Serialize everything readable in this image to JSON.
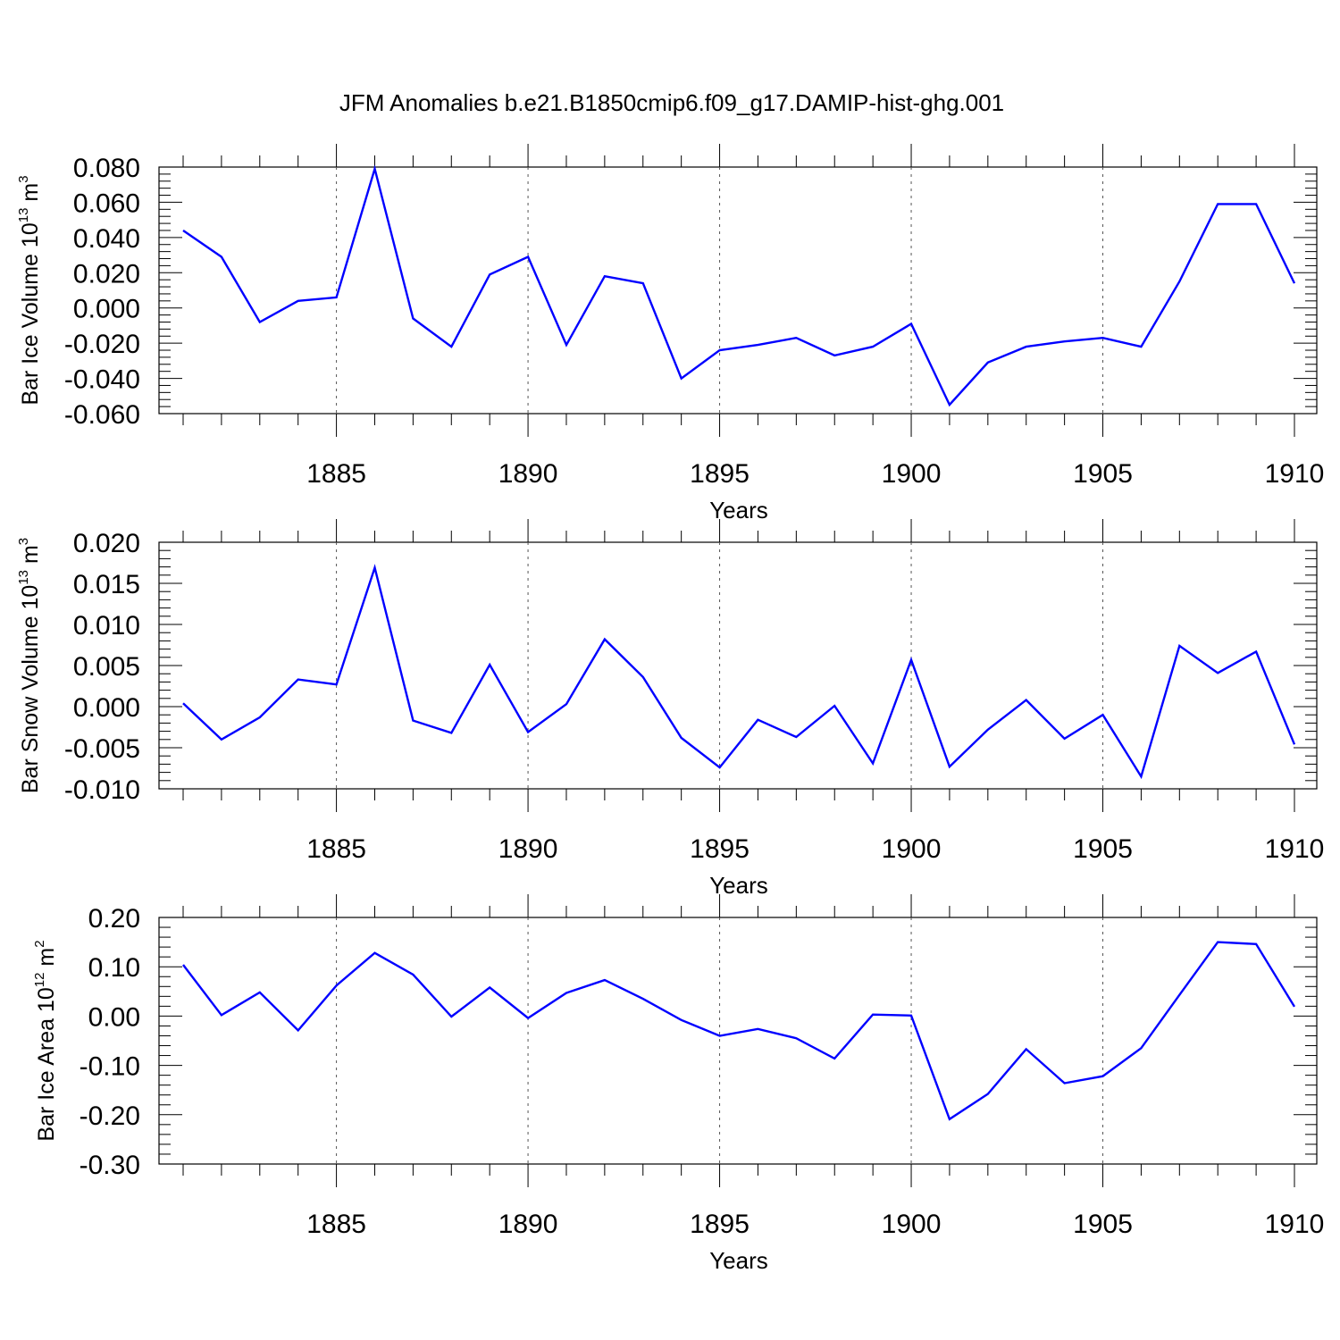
{
  "title": "JFM Anomalies b.e21.B1850cmip6.f09_g17.DAMIP-hist-ghg.001",
  "colors": {
    "line": "#0000ff",
    "axis": "#000000",
    "grid": "#000000",
    "background": "#ffffff"
  },
  "chart_data": [
    {
      "type": "line",
      "xlabel": "Years",
      "ylabel": {
        "base": "Bar Ice Volume 10",
        "sup1": "13",
        "unit": " m",
        "sup2": "3"
      },
      "xlim": [
        1881,
        1910
      ],
      "ylim": [
        -0.06,
        0.08
      ],
      "ytick_values": [
        -0.06,
        -0.04,
        -0.02,
        0.0,
        0.02,
        0.04,
        0.06,
        0.08
      ],
      "ytick_labels": [
        "-0.060",
        "-0.040",
        "-0.020",
        "0.000",
        "0.020",
        "0.040",
        "0.060",
        "0.080"
      ],
      "xtick_values": [
        1885,
        1890,
        1895,
        1900,
        1905,
        1910
      ],
      "xtick_labels": [
        "1885",
        "1890",
        "1895",
        "1900",
        "1905",
        "1910"
      ],
      "x": [
        1881,
        1882,
        1883,
        1884,
        1885,
        1886,
        1887,
        1888,
        1889,
        1890,
        1891,
        1892,
        1893,
        1894,
        1895,
        1896,
        1897,
        1898,
        1899,
        1900,
        1901,
        1902,
        1903,
        1904,
        1905,
        1906,
        1907,
        1908,
        1909,
        1910
      ],
      "series": [
        {
          "values": [
            0.044,
            0.029,
            -0.008,
            0.004,
            0.006,
            0.079,
            -0.006,
            -0.022,
            0.019,
            0.029,
            -0.021,
            0.018,
            0.014,
            -0.04,
            -0.024,
            -0.021,
            -0.017,
            -0.027,
            -0.022,
            -0.009,
            -0.055,
            -0.031,
            -0.022,
            -0.019,
            -0.017,
            -0.022,
            0.015,
            0.059,
            0.059,
            0.014
          ]
        }
      ]
    },
    {
      "type": "line",
      "xlabel": "Years",
      "ylabel": {
        "base": "Bar Snow Volume 10",
        "sup1": "13",
        "unit": " m",
        "sup2": "3"
      },
      "xlim": [
        1881,
        1910
      ],
      "ylim": [
        -0.01,
        0.02
      ],
      "ytick_values": [
        -0.01,
        -0.005,
        0.0,
        0.005,
        0.01,
        0.015,
        0.02
      ],
      "ytick_labels": [
        "-0.010",
        "-0.005",
        "0.000",
        "0.005",
        "0.010",
        "0.015",
        "0.020"
      ],
      "xtick_values": [
        1885,
        1890,
        1895,
        1900,
        1905,
        1910
      ],
      "xtick_labels": [
        "1885",
        "1890",
        "1895",
        "1900",
        "1905",
        "1910"
      ],
      "x": [
        1881,
        1882,
        1883,
        1884,
        1885,
        1886,
        1887,
        1888,
        1889,
        1890,
        1891,
        1892,
        1893,
        1894,
        1895,
        1896,
        1897,
        1898,
        1899,
        1900,
        1901,
        1902,
        1903,
        1904,
        1905,
        1906,
        1907,
        1908,
        1909,
        1910
      ],
      "series": [
        {
          "values": [
            0.0004,
            -0.004,
            -0.0013,
            0.0033,
            0.0027,
            0.0169,
            -0.0017,
            -0.0032,
            0.0051,
            -0.0031,
            0.0003,
            0.0082,
            0.0036,
            -0.0038,
            -0.0074,
            -0.0016,
            -0.0037,
            0.0001,
            -0.0069,
            0.0057,
            -0.0073,
            -0.0028,
            0.0008,
            -0.0039,
            -0.001,
            -0.0085,
            0.0074,
            0.0041,
            0.0067,
            -0.0046
          ]
        }
      ]
    },
    {
      "type": "line",
      "xlabel": "Years",
      "ylabel": {
        "base": "Bar Ice Area 10",
        "sup1": "12",
        "unit": " m",
        "sup2": "2"
      },
      "xlim": [
        1881,
        1910
      ],
      "ylim": [
        -0.3,
        0.2
      ],
      "ytick_values": [
        -0.3,
        -0.2,
        -0.1,
        0.0,
        0.1,
        0.2
      ],
      "ytick_labels": [
        "-0.30",
        "-0.20",
        "-0.10",
        "0.00",
        "0.10",
        "0.20"
      ],
      "xtick_values": [
        1885,
        1890,
        1895,
        1900,
        1905,
        1910
      ],
      "xtick_labels": [
        "1885",
        "1890",
        "1895",
        "1900",
        "1905",
        "1910"
      ],
      "x": [
        1881,
        1882,
        1883,
        1884,
        1885,
        1886,
        1887,
        1888,
        1889,
        1890,
        1891,
        1892,
        1893,
        1894,
        1895,
        1896,
        1897,
        1898,
        1899,
        1900,
        1901,
        1902,
        1903,
        1904,
        1905,
        1906,
        1907,
        1908,
        1909,
        1910
      ],
      "series": [
        {
          "values": [
            0.104,
            0.002,
            0.048,
            -0.029,
            0.062,
            0.128,
            0.084,
            -0.001,
            0.058,
            -0.004,
            0.047,
            0.073,
            0.035,
            -0.008,
            -0.04,
            -0.026,
            -0.045,
            -0.086,
            0.003,
            0.001,
            -0.209,
            -0.158,
            -0.067,
            -0.136,
            -0.122,
            -0.065,
            0.043,
            0.15,
            0.146,
            0.019
          ]
        }
      ]
    }
  ]
}
